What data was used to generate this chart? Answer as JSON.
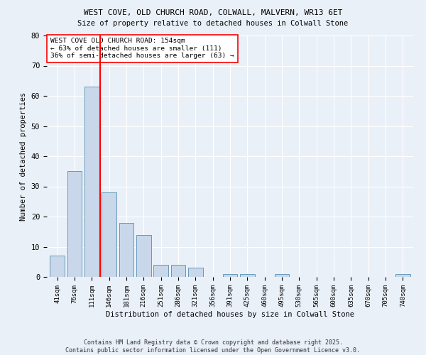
{
  "title1": "WEST COVE, OLD CHURCH ROAD, COLWALL, MALVERN, WR13 6ET",
  "title2": "Size of property relative to detached houses in Colwall Stone",
  "xlabel": "Distribution of detached houses by size in Colwall Stone",
  "ylabel": "Number of detached properties",
  "bar_labels": [
    "41sqm",
    "76sqm",
    "111sqm",
    "146sqm",
    "181sqm",
    "216sqm",
    "251sqm",
    "286sqm",
    "321sqm",
    "356sqm",
    "391sqm",
    "425sqm",
    "460sqm",
    "495sqm",
    "530sqm",
    "565sqm",
    "600sqm",
    "635sqm",
    "670sqm",
    "705sqm",
    "740sqm"
  ],
  "bar_values": [
    7,
    35,
    63,
    28,
    18,
    14,
    4,
    4,
    3,
    0,
    1,
    1,
    0,
    1,
    0,
    0,
    0,
    0,
    0,
    0,
    1
  ],
  "bar_color": "#c8d8ea",
  "bar_edge_color": "#6699bb",
  "vline_position": 2.5,
  "vline_color": "red",
  "annotation_text": "WEST COVE OLD CHURCH ROAD: 154sqm\n← 63% of detached houses are smaller (111)\n36% of semi-detached houses are larger (63) →",
  "annotation_box_color": "white",
  "annotation_box_edge": "red",
  "ylim": [
    0,
    80
  ],
  "yticks": [
    0,
    10,
    20,
    30,
    40,
    50,
    60,
    70,
    80
  ],
  "bg_color": "#eaf0f8",
  "grid_color": "white",
  "footer": "Contains HM Land Registry data © Crown copyright and database right 2025.\nContains public sector information licensed under the Open Government Licence v3.0."
}
